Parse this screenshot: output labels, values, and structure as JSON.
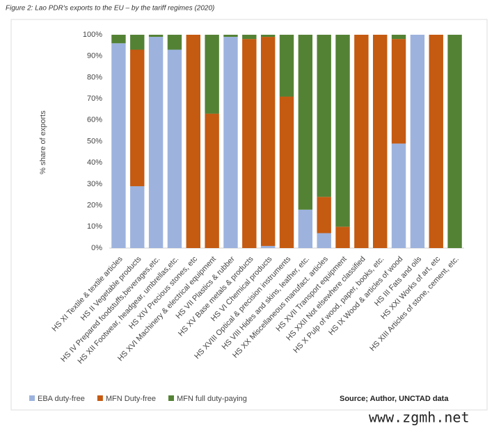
{
  "chart_data": {
    "type": "stacked_bar",
    "title": "Figure 2: Lao PDR's exports to the EU – by the tariff regimes (2020)",
    "y_label": "% share of exports",
    "source": "Source; Author, UNCTAD data",
    "watermark": "www.zgmh.net",
    "categories": [
      "HS XI Textile & textile articles",
      "HS II Vegetable products",
      "HS IV Prepared foodstuffs,beverages,etc.",
      "HS XII Footwear, headgear, umbrellas,etc.",
      "HS XIV Precious stones, etc",
      "HS XVI Machinery & electrical equipment",
      "HS VII Plastics & rubber",
      "HS XV Base metals & products",
      "HS VI Chemical products",
      "HS XVIII Optical & precision instruments",
      "HS VIII Hides and skins, leather, etc.",
      "HS XX Miscellaneous manufact. articles",
      "HS XVII Transport equipment",
      "HS XXII Not elsewhere classified",
      "HS X Pulp of wood, paper, books, etc.",
      "HS IX Wood & articles of wood",
      "HS III Fats and oils",
      "HS XXI Works of art, etc",
      "HS XIII Articles of stone, cement, etc."
    ],
    "series": [
      {
        "name": "EBA duty-free",
        "color": "#9db3de",
        "values": [
          96,
          29,
          99,
          93,
          0,
          0,
          99,
          0,
          1,
          0,
          18,
          7,
          0,
          0,
          0,
          49,
          100,
          0,
          0
        ]
      },
      {
        "name": "MFN Duty-free",
        "color": "#c55a11",
        "values": [
          0,
          64,
          0,
          0,
          100,
          63,
          0,
          98,
          98,
          71,
          0,
          17,
          10,
          100,
          100,
          49,
          0,
          100,
          0
        ]
      },
      {
        "name": "MFN full duty-paying",
        "color": "#548235",
        "values": [
          4,
          7,
          1,
          7,
          0,
          37,
          1,
          2,
          1,
          29,
          82,
          76,
          90,
          0,
          0,
          2,
          0,
          0,
          100
        ]
      }
    ],
    "ylim": [
      0,
      100
    ],
    "yticks": [
      {
        "value": 0,
        "label": "0%"
      },
      {
        "value": 10,
        "label": "10%"
      },
      {
        "value": 20,
        "label": "20%"
      },
      {
        "value": 30,
        "label": "30%"
      },
      {
        "value": 40,
        "label": "40%"
      },
      {
        "value": 50,
        "label": "50%"
      },
      {
        "value": 60,
        "label": "60%"
      },
      {
        "value": 70,
        "label": "70%"
      },
      {
        "value": 80,
        "label": "80%"
      },
      {
        "value": 90,
        "label": "90%"
      },
      {
        "value": 100,
        "label": "100%"
      }
    ],
    "grid": false
  }
}
